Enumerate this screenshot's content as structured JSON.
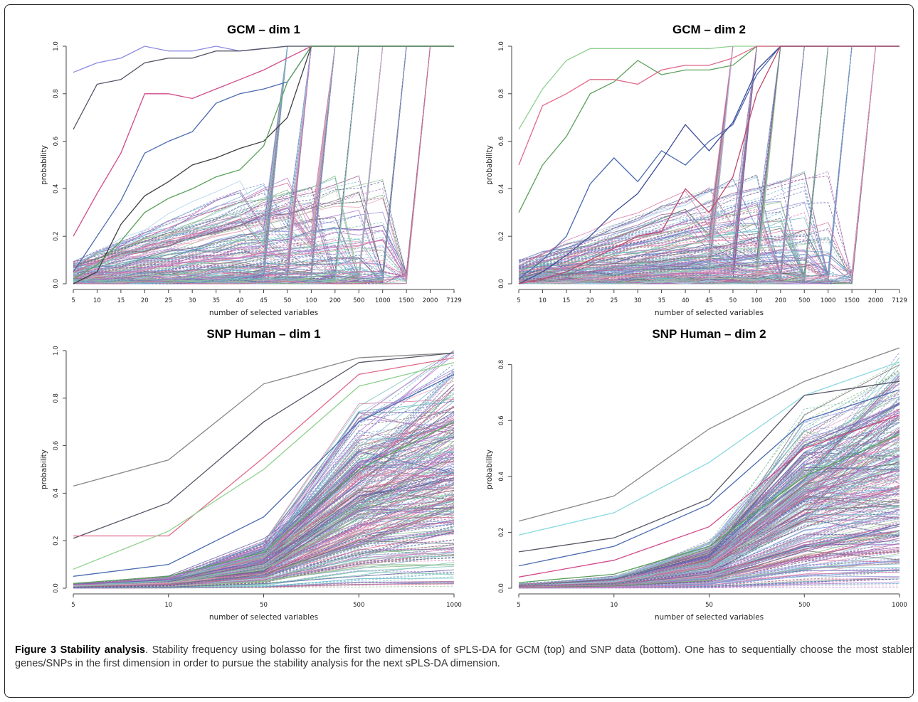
{
  "chart_data": [
    {
      "type": "line",
      "title": "GCM – dim 1",
      "xlabel": "number of selected variables",
      "ylabel": "probability",
      "x_ticks": [
        "5",
        "10",
        "15",
        "20",
        "25",
        "30",
        "35",
        "40",
        "45",
        "50",
        "100",
        "200",
        "500",
        "1000",
        "1500",
        "2000",
        "7129"
      ],
      "y_ticks": [
        "0.0",
        "0.2",
        "0.4",
        "0.6",
        "0.8",
        "1.0"
      ],
      "ylim": [
        0,
        1
      ],
      "grid": false,
      "legend": "none",
      "series_count_note": "hundreds of colored solid and dashed lines (one per gene)",
      "series": [
        {
          "values": [
            0.89,
            0.93,
            0.95,
            1.0,
            0.98,
            0.98,
            1.0,
            0.98,
            0.99,
            1.0,
            1.0,
            1.0,
            1.0,
            1.0,
            1.0,
            1.0,
            1.0
          ],
          "color": "#8a8ae0"
        },
        {
          "values": [
            0.65,
            0.84,
            0.86,
            0.93,
            0.95,
            0.95,
            0.98,
            0.98,
            0.99,
            1.0,
            1.0,
            1.0,
            1.0,
            1.0,
            1.0,
            1.0,
            1.0
          ],
          "color": "#555566"
        },
        {
          "values": [
            0.2,
            0.38,
            0.55,
            0.8,
            0.8,
            0.78,
            0.82,
            0.86,
            0.9,
            0.95,
            1.0,
            1.0,
            1.0,
            1.0,
            1.0,
            1.0,
            1.0
          ],
          "color": "#d04a8a"
        },
        {
          "values": [
            0.05,
            0.2,
            0.35,
            0.55,
            0.6,
            0.64,
            0.76,
            0.8,
            0.82,
            0.85,
            1.0,
            1.0,
            1.0,
            1.0,
            1.0,
            1.0,
            1.0
          ],
          "color": "#4a6ab0"
        },
        {
          "values": [
            0.0,
            0.05,
            0.25,
            0.37,
            0.43,
            0.5,
            0.53,
            0.57,
            0.6,
            0.7,
            1.0,
            1.0,
            1.0,
            1.0,
            1.0,
            1.0,
            1.0
          ],
          "color": "#404040"
        },
        {
          "values": [
            0.02,
            0.08,
            0.18,
            0.3,
            0.36,
            0.4,
            0.45,
            0.48,
            0.58,
            0.85,
            1.0,
            1.0,
            1.0,
            1.0,
            1.0,
            1.0,
            1.0
          ],
          "color": "#5aa05a"
        }
      ]
    },
    {
      "type": "line",
      "title": "GCM – dim 2",
      "xlabel": "number of selected variables",
      "ylabel": "probability",
      "x_ticks": [
        "5",
        "10",
        "15",
        "20",
        "25",
        "30",
        "35",
        "40",
        "45",
        "50",
        "100",
        "200",
        "500",
        "1000",
        "1500",
        "2000",
        "7129"
      ],
      "y_ticks": [
        "0.0",
        "0.2",
        "0.4",
        "0.6",
        "0.8",
        "1.0"
      ],
      "ylim": [
        0,
        1
      ],
      "grid": false,
      "legend": "none",
      "series_count_note": "hundreds of colored solid and dashed lines (one per gene)",
      "series": [
        {
          "values": [
            0.65,
            0.82,
            0.94,
            0.99,
            0.99,
            0.99,
            0.99,
            0.99,
            0.99,
            1.0,
            1.0,
            1.0,
            1.0,
            1.0,
            1.0,
            1.0,
            1.0
          ],
          "color": "#8fd08f"
        },
        {
          "values": [
            0.3,
            0.5,
            0.62,
            0.8,
            0.85,
            0.94,
            0.88,
            0.9,
            0.9,
            0.92,
            1.0,
            1.0,
            1.0,
            1.0,
            1.0,
            1.0,
            1.0
          ],
          "color": "#5aa05a"
        },
        {
          "values": [
            0.5,
            0.75,
            0.8,
            0.86,
            0.86,
            0.84,
            0.9,
            0.92,
            0.92,
            0.95,
            1.0,
            1.0,
            1.0,
            1.0,
            1.0,
            1.0,
            1.0
          ],
          "color": "#e06a8a"
        },
        {
          "values": [
            0.02,
            0.1,
            0.2,
            0.42,
            0.53,
            0.43,
            0.56,
            0.5,
            0.6,
            0.67,
            0.88,
            1.0,
            1.0,
            1.0,
            1.0,
            1.0,
            1.0
          ],
          "color": "#4a6ab0"
        },
        {
          "values": [
            0.0,
            0.05,
            0.12,
            0.2,
            0.3,
            0.38,
            0.52,
            0.67,
            0.56,
            0.68,
            0.9,
            1.0,
            1.0,
            1.0,
            1.0,
            1.0,
            1.0
          ],
          "color": "#3a4a9a"
        },
        {
          "values": [
            0.0,
            0.02,
            0.05,
            0.1,
            0.15,
            0.2,
            0.22,
            0.4,
            0.3,
            0.45,
            0.8,
            1.0,
            1.0,
            1.0,
            1.0,
            1.0,
            1.0
          ],
          "color": "#c04a6a"
        }
      ]
    },
    {
      "type": "line",
      "title": "SNP Human – dim 1",
      "xlabel": "number of selected variables",
      "ylabel": "probability",
      "x_ticks": [
        "5",
        "10",
        "50",
        "500",
        "1000"
      ],
      "y_ticks": [
        "0.0",
        "0.2",
        "0.4",
        "0.6",
        "0.8",
        "1.0"
      ],
      "ylim": [
        0,
        1
      ],
      "grid": false,
      "legend": "none",
      "series_count_note": "hundreds of colored solid and dashed lines (one per SNP)",
      "series": [
        {
          "values": [
            0.43,
            0.54,
            0.86,
            0.97,
            0.99
          ],
          "color": "#888888"
        },
        {
          "values": [
            0.21,
            0.36,
            0.7,
            0.95,
            0.99
          ],
          "color": "#555566"
        },
        {
          "values": [
            0.22,
            0.22,
            0.55,
            0.9,
            0.97
          ],
          "color": "#e06a8a"
        },
        {
          "values": [
            0.08,
            0.24,
            0.5,
            0.85,
            0.95
          ],
          "color": "#8fd08f"
        },
        {
          "values": [
            0.05,
            0.1,
            0.3,
            0.7,
            0.9
          ],
          "color": "#4a6ab0"
        },
        {
          "values": [
            0.02,
            0.05,
            0.15,
            0.5,
            0.7
          ],
          "color": "#5aa05a"
        }
      ]
    },
    {
      "type": "line",
      "title": "SNP Human – dim 2",
      "xlabel": "number of selected variables",
      "ylabel": "probability",
      "x_ticks": [
        "5",
        "10",
        "50",
        "500",
        "1000"
      ],
      "y_ticks": [
        "0.0",
        "0.2",
        "0.4",
        "0.6",
        "0.8"
      ],
      "ylim": [
        0,
        0.85
      ],
      "grid": false,
      "legend": "none",
      "series_count_note": "hundreds of colored solid and dashed lines (one per SNP)",
      "series": [
        {
          "values": [
            0.24,
            0.33,
            0.57,
            0.74,
            0.86
          ],
          "color": "#888888"
        },
        {
          "values": [
            0.19,
            0.27,
            0.45,
            0.69,
            0.81
          ],
          "color": "#8ad8e0"
        },
        {
          "values": [
            0.13,
            0.18,
            0.32,
            0.69,
            0.74
          ],
          "color": "#555566"
        },
        {
          "values": [
            0.08,
            0.15,
            0.3,
            0.6,
            0.71
          ],
          "color": "#4a6ab0"
        },
        {
          "values": [
            0.04,
            0.1,
            0.22,
            0.5,
            0.62
          ],
          "color": "#d04a8a"
        },
        {
          "values": [
            0.02,
            0.05,
            0.15,
            0.4,
            0.55
          ],
          "color": "#5aa05a"
        }
      ]
    }
  ],
  "caption": {
    "heading": "Figure 3 Stability analysis",
    "text": ". Stability frequency using bolasso for the first two dimensions of sPLS-DA for GCM (top) and SNP data (bottom). One has to sequentially choose the most stabler genes/SNPs in the first dimension in order to pursue the stability analysis for the next sPLS-DA dimension."
  },
  "palette": [
    "#6a6ad0",
    "#d04a8a",
    "#5aa05a",
    "#4a9ac0",
    "#8a3a9a",
    "#c0306a",
    "#3a5ab0",
    "#50b0a0",
    "#9a50c0",
    "#e08aa8",
    "#90c0e0",
    "#7ab07a",
    "#404040",
    "#2a2a8a",
    "#7a2a6a",
    "#30a0b0"
  ]
}
